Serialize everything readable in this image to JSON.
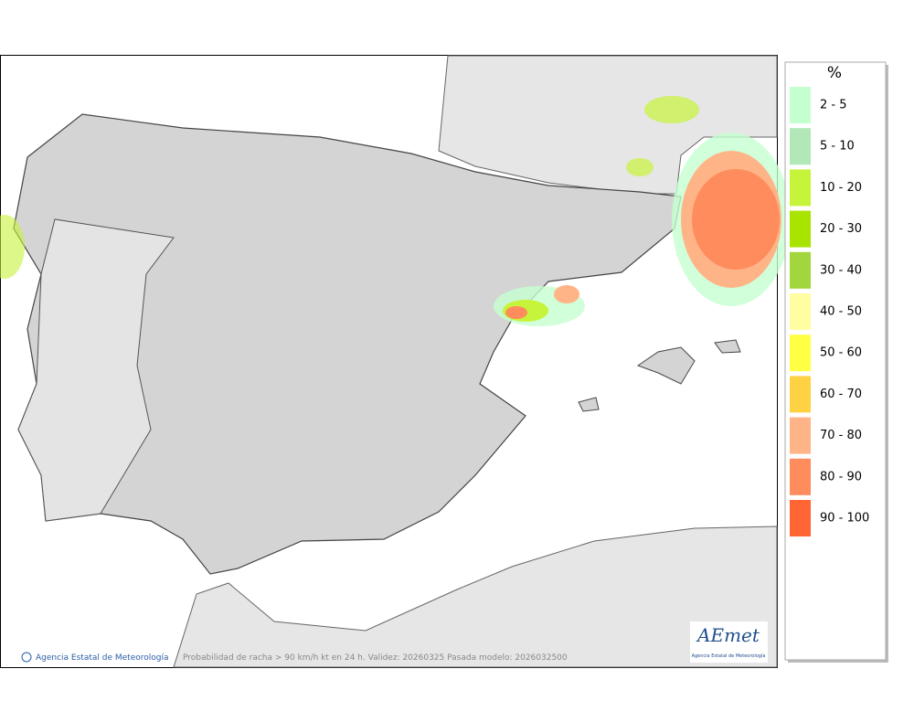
{
  "map": {
    "caption": "Probabilidad de racha > 90 km/h kt en 24 h. Validez: 20260325 Pasada modelo: 2026032500",
    "credit": "Agencia Estatal de Meteorología",
    "logo": {
      "text": "AEmet",
      "subtitle": "Agencia Estatal de Meteorología"
    }
  },
  "legend": {
    "title": "%",
    "items": [
      {
        "label": "2 - 5",
        "color": "#c4ffd0"
      },
      {
        "label": "5 - 10",
        "color": "#b2e8b8"
      },
      {
        "label": "10 - 20",
        "color": "#c6f43a"
      },
      {
        "label": "20 - 30",
        "color": "#a8e400"
      },
      {
        "label": "30 - 40",
        "color": "#a2d63c"
      },
      {
        "label": "40 - 50",
        "color": "#ffffa2"
      },
      {
        "label": "50 - 60",
        "color": "#ffff44"
      },
      {
        "label": "60 - 70",
        "color": "#ffd244"
      },
      {
        "label": "70 - 80",
        "color": "#ffb488"
      },
      {
        "label": "80 - 90",
        "color": "#ff8c5c"
      },
      {
        "label": "90 - 100",
        "color": "#ff6633"
      }
    ]
  }
}
